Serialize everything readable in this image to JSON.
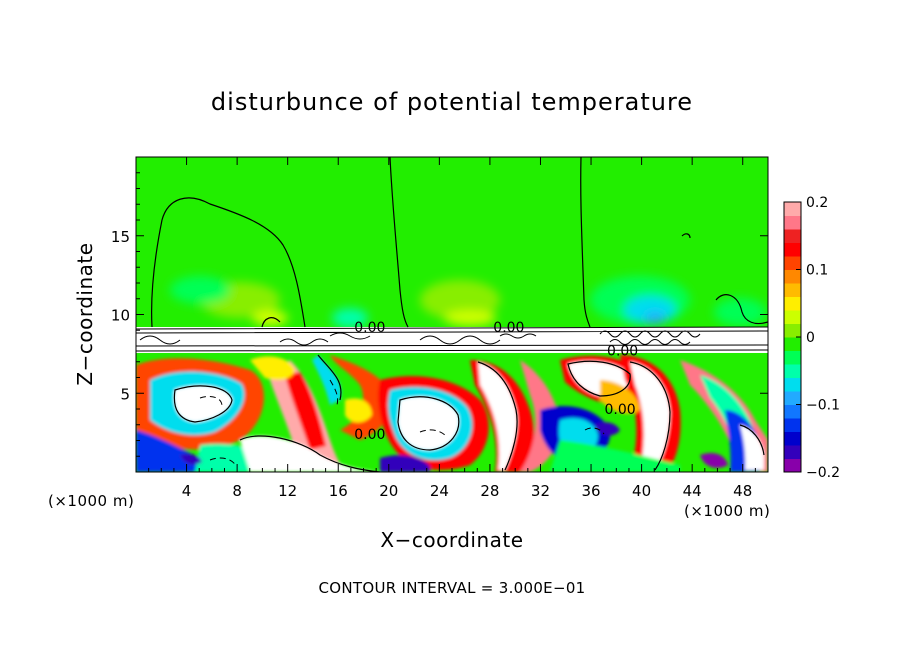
{
  "chart_data": {
    "type": "heatmap",
    "title": "disturbunce of potential temperature",
    "xlabel": "X−coordinate",
    "ylabel": "Z−coordinate",
    "x_unit_left": "(×1000 m)",
    "x_unit_right": "(×1000 m)",
    "footer": "CONTOUR INTERVAL = 3.000E−01",
    "xlim": [
      0,
      50
    ],
    "ylim": [
      0,
      20
    ],
    "x_ticks": [
      4,
      8,
      12,
      16,
      20,
      24,
      28,
      32,
      36,
      40,
      44,
      48
    ],
    "y_ticks": [
      5,
      10,
      15
    ],
    "colorbar": {
      "range": [
        -0.2,
        0.2
      ],
      "tick_values": [
        0.2,
        0.1,
        0,
        -0.1,
        -0.2
      ],
      "tick_labels": [
        "0.2",
        "0.1",
        "0",
        "−0.1",
        "−0.2"
      ],
      "colors": [
        "#8800aa",
        "#3300bb",
        "#0000cc",
        "#0033ee",
        "#1177ff",
        "#22aaff",
        "#00ddee",
        "#00ffaa",
        "#00ff55",
        "#22ee00",
        "#88ee00",
        "#ccff00",
        "#ffee00",
        "#ffbb00",
        "#ff8800",
        "#ff4400",
        "#ff0000",
        "#ee2222",
        "#ff7788",
        "#ffaaaa"
      ]
    },
    "contour_labels": [
      {
        "text": "0.00",
        "x": 18.5,
        "y": 9.2
      },
      {
        "text": "0.00",
        "x": 29.5,
        "y": 9.2
      },
      {
        "text": "0.00",
        "x": 38.5,
        "y": 7.7
      },
      {
        "text": "0.00",
        "x": 18.5,
        "y": 2.4
      },
      {
        "text": "0.00",
        "x": 38.3,
        "y": 4.0
      }
    ],
    "background_value": 0.02
  }
}
